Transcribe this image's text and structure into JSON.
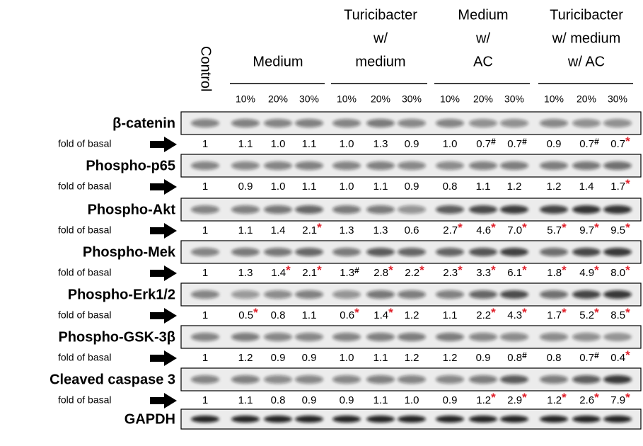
{
  "header": {
    "control": "Control",
    "groups": [
      {
        "lines": [
          "Medium"
        ],
        "subs": [
          "10%",
          "20%",
          "30%"
        ]
      },
      {
        "lines": [
          "Turicibacter",
          "w/",
          "medium"
        ],
        "subs": [
          "10%",
          "20%",
          "30%"
        ]
      },
      {
        "lines": [
          "Medium",
          "w/",
          "AC"
        ],
        "subs": [
          "10%",
          "20%",
          "30%"
        ]
      },
      {
        "lines": [
          "Turicibacter",
          "w/ medium",
          "w/ AC"
        ],
        "subs": [
          "10%",
          "20%",
          "30%"
        ]
      }
    ]
  },
  "rows": [
    {
      "label": "β-catenin",
      "fold_label": "fold of basal",
      "values": [
        {
          "text": "1"
        },
        {
          "text": "1.1"
        },
        {
          "text": "1.0"
        },
        {
          "text": "1.1"
        },
        {
          "text": "1.0"
        },
        {
          "text": "1.3"
        },
        {
          "text": "0.9"
        },
        {
          "text": "1.0"
        },
        {
          "text": "0.7",
          "mark": "#"
        },
        {
          "text": "0.7",
          "mark": "#"
        },
        {
          "text": "0.9"
        },
        {
          "text": "0.7",
          "mark": "#"
        },
        {
          "text": "0.7",
          "mark": "*"
        }
      ]
    },
    {
      "label": "Phospho-p65",
      "fold_label": "fold of basal",
      "values": [
        {
          "text": "1"
        },
        {
          "text": "0.9"
        },
        {
          "text": "1.0"
        },
        {
          "text": "1.1"
        },
        {
          "text": "1.0"
        },
        {
          "text": "1.1"
        },
        {
          "text": "0.9"
        },
        {
          "text": "0.8"
        },
        {
          "text": "1.1"
        },
        {
          "text": "1.2"
        },
        {
          "text": "1.2"
        },
        {
          "text": "1.4"
        },
        {
          "text": "1.7",
          "mark": "*"
        }
      ]
    },
    {
      "label": "Phospho-Akt",
      "fold_label": "fold of basal",
      "values": [
        {
          "text": "1"
        },
        {
          "text": "1.1"
        },
        {
          "text": "1.4"
        },
        {
          "text": "2.1",
          "mark": "*"
        },
        {
          "text": "1.3"
        },
        {
          "text": "1.3"
        },
        {
          "text": "0.6"
        },
        {
          "text": "2.7",
          "mark": "*"
        },
        {
          "text": "4.6",
          "mark": "*"
        },
        {
          "text": "7.0",
          "mark": "*"
        },
        {
          "text": "5.7",
          "mark": "*"
        },
        {
          "text": "9.7",
          "mark": "*"
        },
        {
          "text": "9.5",
          "mark": "*"
        }
      ]
    },
    {
      "label": "Phospho-Mek",
      "fold_label": "fold of basal",
      "values": [
        {
          "text": "1"
        },
        {
          "text": "1.3"
        },
        {
          "text": "1.4",
          "mark": "*"
        },
        {
          "text": "2.1",
          "mark": "*"
        },
        {
          "text": "1.3",
          "mark": "#"
        },
        {
          "text": "2.8",
          "mark": "*"
        },
        {
          "text": "2.2",
          "mark": "*"
        },
        {
          "text": "2.3",
          "mark": "*"
        },
        {
          "text": "3.3",
          "mark": "*"
        },
        {
          "text": "6.1",
          "mark": "*"
        },
        {
          "text": "1.8",
          "mark": "*"
        },
        {
          "text": "4.9",
          "mark": "*"
        },
        {
          "text": "8.0",
          "mark": "*"
        }
      ]
    },
    {
      "label": "Phospho-Erk1/2",
      "fold_label": "fold of basal",
      "values": [
        {
          "text": "1"
        },
        {
          "text": "0.5",
          "mark": "*"
        },
        {
          "text": "0.8"
        },
        {
          "text": "1.1"
        },
        {
          "text": "0.6",
          "mark": "*"
        },
        {
          "text": "1.4",
          "mark": "*"
        },
        {
          "text": "1.2"
        },
        {
          "text": "1.1"
        },
        {
          "text": "2.2",
          "mark": "*"
        },
        {
          "text": "4.3",
          "mark": "*"
        },
        {
          "text": "1.7",
          "mark": "*"
        },
        {
          "text": "5.2",
          "mark": "*"
        },
        {
          "text": "8.5",
          "mark": "*"
        }
      ]
    },
    {
      "label": "Phospho-GSK-3β",
      "fold_label": "fold of basal",
      "values": [
        {
          "text": "1"
        },
        {
          "text": "1.2"
        },
        {
          "text": "0.9"
        },
        {
          "text": "0.9"
        },
        {
          "text": "1.0"
        },
        {
          "text": "1.1"
        },
        {
          "text": "1.2"
        },
        {
          "text": "1.2"
        },
        {
          "text": "0.9"
        },
        {
          "text": "0.8",
          "mark": "#"
        },
        {
          "text": "0.8"
        },
        {
          "text": "0.7",
          "mark": "#"
        },
        {
          "text": "0.4",
          "mark": "*"
        }
      ]
    },
    {
      "label": "Cleaved caspase 3",
      "fold_label": "fold of basal",
      "values": [
        {
          "text": "1"
        },
        {
          "text": "1.1"
        },
        {
          "text": "0.8"
        },
        {
          "text": "0.9"
        },
        {
          "text": "0.9"
        },
        {
          "text": "1.1"
        },
        {
          "text": "1.0"
        },
        {
          "text": "0.9"
        },
        {
          "text": "1.2",
          "mark": "*"
        },
        {
          "text": "2.9",
          "mark": "*"
        },
        {
          "text": "1.2",
          "mark": "*"
        },
        {
          "text": "2.6",
          "mark": "*"
        },
        {
          "text": "7.9",
          "mark": "*"
        }
      ]
    },
    {
      "label": "GAPDH"
    }
  ]
}
